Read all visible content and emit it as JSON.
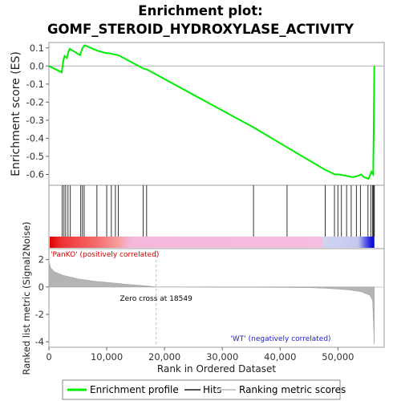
{
  "chart_data": {
    "type": "line",
    "title_line1": "Enrichment plot:",
    "title_line2": "GOMF_STEROID_HYDROXYLASE_ACTIVITY",
    "es_panel": {
      "ylabel": "Enrichment score (ES)",
      "ylim": [
        -0.66,
        0.13
      ],
      "yticks": [
        0.1,
        0.0,
        -0.1,
        -0.2,
        -0.3,
        -0.4,
        -0.5,
        -0.6
      ],
      "ytick_labels": [
        "0.1",
        "0.0",
        "-0.1",
        "-0.2",
        "-0.3",
        "-0.4",
        "-0.5",
        "-0.6"
      ],
      "line_color": "#00ee00",
      "profile": [
        [
          0,
          0.0
        ],
        [
          2200,
          -0.035
        ],
        [
          2500,
          0.03
        ],
        [
          2700,
          0.055
        ],
        [
          3100,
          0.045
        ],
        [
          3300,
          0.07
        ],
        [
          3600,
          0.095
        ],
        [
          5400,
          0.06
        ],
        [
          5700,
          0.09
        ],
        [
          6000,
          0.11
        ],
        [
          6200,
          0.115
        ],
        [
          8300,
          0.085
        ],
        [
          10000,
          0.07
        ],
        [
          10300,
          0.072
        ],
        [
          11200,
          0.065
        ],
        [
          12000,
          0.06
        ],
        [
          16400,
          -0.015
        ],
        [
          17000,
          -0.02
        ],
        [
          35400,
          -0.34
        ],
        [
          41200,
          -0.45
        ],
        [
          47800,
          -0.575
        ],
        [
          49500,
          -0.6
        ],
        [
          50200,
          -0.6
        ],
        [
          51000,
          -0.605
        ],
        [
          51700,
          -0.61
        ],
        [
          52500,
          -0.615
        ],
        [
          53300,
          -0.61
        ],
        [
          54000,
          -0.6
        ],
        [
          54500,
          -0.615
        ],
        [
          55300,
          -0.625
        ],
        [
          55800,
          -0.585
        ],
        [
          56100,
          -0.6
        ],
        [
          56200,
          -0.35
        ],
        [
          56300,
          0.0
        ]
      ]
    },
    "hits": [
      2300,
      2600,
      2900,
      3300,
      3700,
      5500,
      5800,
      6100,
      8300,
      10000,
      10800,
      11500,
      12000,
      16300,
      16900,
      35400,
      41200,
      47800,
      49400,
      50000,
      50600,
      51500,
      52300,
      53200,
      53900,
      55200,
      55700,
      56000,
      56100,
      56200,
      56300
    ],
    "ranking_panel": {
      "ylabel": "Ranked list metric (Signal2Noise)",
      "ylim": [
        -4.4,
        2.8
      ],
      "yticks": [
        2,
        0,
        -2,
        -4
      ],
      "ytick_labels": [
        "2",
        "0",
        "-2",
        "-4"
      ],
      "positive_label": "'PanKO' (positively correlated)",
      "negative_label": "'WT' (negatively correlated)",
      "zero_cross_label": "Zero cross at 18549",
      "zero_cross": 18549,
      "metric": [
        [
          0,
          1.9
        ],
        [
          300,
          1.4
        ],
        [
          1000,
          1.1
        ],
        [
          2500,
          0.85
        ],
        [
          5000,
          0.6
        ],
        [
          8000,
          0.42
        ],
        [
          11000,
          0.3
        ],
        [
          14000,
          0.18
        ],
        [
          17000,
          0.08
        ],
        [
          18549,
          0.0
        ],
        [
          25000,
          -0.01
        ],
        [
          35000,
          -0.02
        ],
        [
          45000,
          -0.05
        ],
        [
          48000,
          -0.1
        ],
        [
          50000,
          -0.15
        ],
        [
          52000,
          -0.22
        ],
        [
          54000,
          -0.35
        ],
        [
          55500,
          -0.6
        ],
        [
          56000,
          -1.0
        ],
        [
          56300,
          -4.2
        ]
      ]
    },
    "x_axis": {
      "xlabel": "Rank in Ordered Dataset",
      "xlim": [
        0,
        58000
      ],
      "xticks": [
        0,
        10000,
        20000,
        30000,
        40000,
        50000
      ],
      "xtick_labels": [
        "0",
        "10,000",
        "20,000",
        "30,000",
        "40,000",
        "50,000"
      ]
    },
    "legend": [
      {
        "label": "Enrichment profile",
        "color": "#00ee00"
      },
      {
        "label": "Hits",
        "color": "#555555"
      },
      {
        "label": "Ranking metric scores",
        "color": "#cccccc"
      }
    ]
  }
}
